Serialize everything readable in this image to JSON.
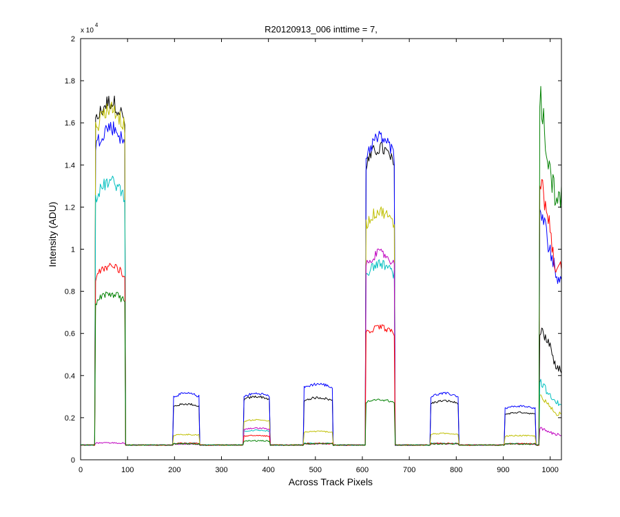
{
  "chart_data": {
    "type": "line",
    "title": "R20120913_006 inttime = 7,",
    "xlabel": "Across Track Pixels",
    "ylabel": "Intensity (ADU)",
    "xlim": [
      0,
      1024
    ],
    "ylim": [
      0,
      20000
    ],
    "x_ticks": [
      0,
      100,
      200,
      300,
      400,
      500,
      600,
      700,
      800,
      900,
      1000
    ],
    "y_ticks": [
      0,
      2000,
      4000,
      6000,
      8000,
      10000,
      12000,
      14000,
      16000,
      18000,
      20000
    ],
    "y_tick_labels": [
      "0",
      "0.2",
      "0.4",
      "0.6",
      "0.8",
      "1",
      "1.2",
      "1.4",
      "1.6",
      "1.8",
      "2"
    ],
    "y_multiplier": {
      "base": "x 10",
      "exponent": "4"
    },
    "grid": false,
    "legend": "none",
    "baseline": 700,
    "plateaus": [
      {
        "x_start": 32,
        "x_end": 95
      },
      {
        "x_start": 198,
        "x_end": 253
      },
      {
        "x_start": 348,
        "x_end": 403
      },
      {
        "x_start": 476,
        "x_end": 536
      },
      {
        "x_start": 607,
        "x_end": 668
      },
      {
        "x_start": 746,
        "x_end": 804
      },
      {
        "x_start": 903,
        "x_end": 968
      }
    ],
    "series": [
      {
        "color": "#000000",
        "levels": [
          17000,
          2650,
          3000,
          2950,
          14800,
          2800,
          2250
        ],
        "edge": [
          6200,
          5500,
          4300
        ]
      },
      {
        "color": "#0000ff",
        "levels": [
          15800,
          3150,
          3150,
          3600,
          15300,
          3150,
          2550
        ],
        "edge": [
          12000,
          10000,
          8800
        ]
      },
      {
        "color": "#bfbf00",
        "levels": [
          16700,
          1200,
          1900,
          1350,
          11800,
          1250,
          1150
        ],
        "edge": [
          3000,
          2500,
          2200
        ]
      },
      {
        "color": "#00bfbf",
        "levels": [
          13200,
          780,
          1400,
          780,
          9300,
          780,
          760
        ],
        "edge": [
          3800,
          3000,
          2700
        ]
      },
      {
        "color": "#bf00bf",
        "levels": [
          800,
          750,
          1500,
          760,
          9800,
          760,
          750
        ],
        "edge": [
          1500,
          1300,
          1200
        ]
      },
      {
        "color": "#ff0000",
        "levels": [
          9200,
          780,
          1150,
          780,
          6300,
          780,
          760
        ],
        "edge": [
          13500,
          11000,
          9000
        ]
      },
      {
        "color": "#008000",
        "levels": [
          7900,
          760,
          900,
          760,
          2850,
          760,
          750
        ],
        "edge": [
          17500,
          13500,
          12500
        ]
      }
    ]
  }
}
